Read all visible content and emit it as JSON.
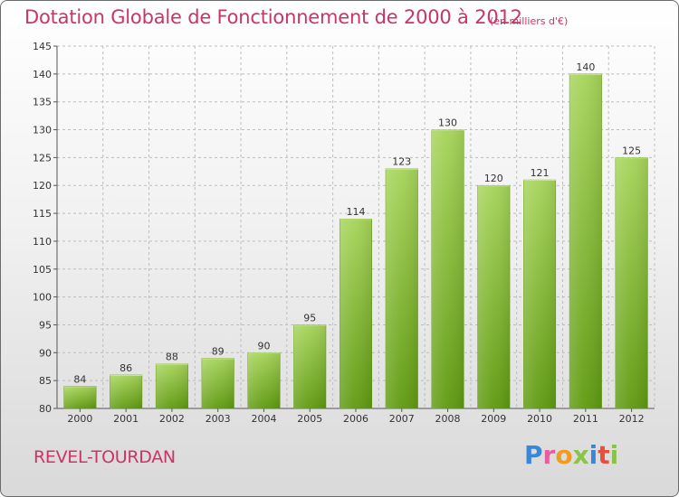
{
  "title": "Dotation Globale de Fonctionnement de 2000 à 2012",
  "unit_note": "(en milliers d'€)",
  "commune": "REVEL-TOURDAN",
  "brand": {
    "letters": [
      "P",
      "r",
      "o",
      "x",
      "i",
      "t",
      "i"
    ],
    "colors": [
      "#3a86d8",
      "#e85d9e",
      "#f29b21",
      "#8bc34a",
      "#3a86d8",
      "#e84e3c",
      "#8bc34a"
    ]
  },
  "colors": {
    "title": "#cc3366",
    "bar_top": "#a6d45a",
    "bar_bottom": "#5f9a10"
  },
  "chart_data": {
    "type": "bar",
    "title": "Dotation Globale de Fonctionnement de 2000 à 2012",
    "xlabel": "",
    "ylabel": "",
    "categories": [
      "2000",
      "2001",
      "2002",
      "2003",
      "2004",
      "2005",
      "2006",
      "2007",
      "2008",
      "2009",
      "2010",
      "2011",
      "2012"
    ],
    "values": [
      84,
      86,
      88,
      89,
      90,
      95,
      114,
      123,
      130,
      120,
      121,
      140,
      125
    ],
    "ylim": [
      80,
      145
    ],
    "yticks": [
      80,
      85,
      90,
      95,
      100,
      105,
      110,
      115,
      120,
      125,
      130,
      135,
      140,
      145
    ],
    "grid": true,
    "legend": "none"
  }
}
